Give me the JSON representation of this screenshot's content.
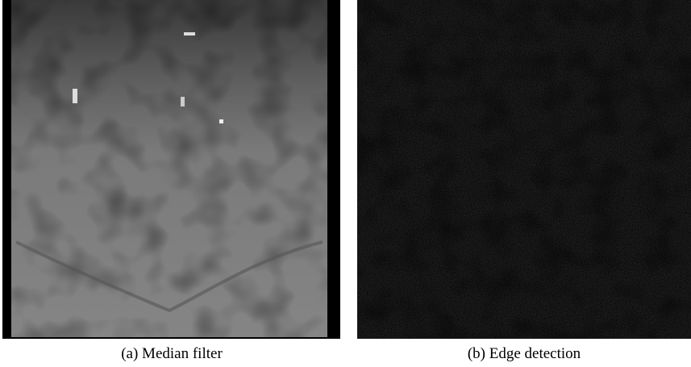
{
  "figure": {
    "panels": [
      {
        "caption": "(a) Median filter"
      },
      {
        "caption": "(b) Edge detection"
      }
    ]
  }
}
